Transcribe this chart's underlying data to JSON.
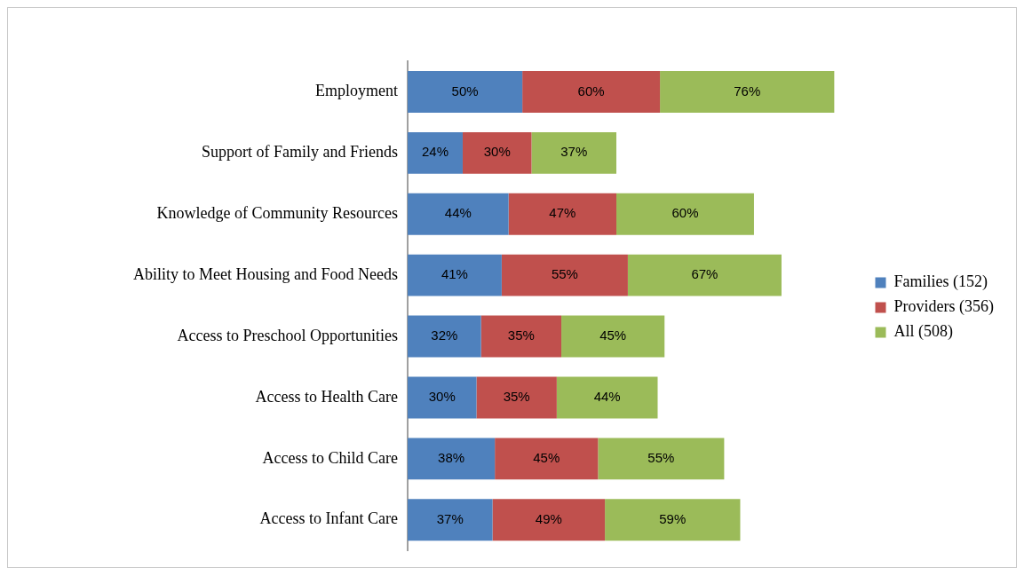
{
  "chart_data": {
    "type": "bar",
    "orientation": "horizontal",
    "stacked": true,
    "legend": "right",
    "categories": [
      "Employment",
      "Support of Family and Friends",
      "Knowledge of Community Resources",
      "Ability to Meet Housing and Food Needs",
      "Access to Preschool Opportunities",
      "Access to Health Care",
      "Access to Child Care",
      "Access to Infant Care"
    ],
    "series": [
      {
        "name": "Families (152)",
        "color": "#4f81bd",
        "values": [
          50,
          24,
          44,
          41,
          32,
          30,
          38,
          37
        ],
        "value_labels": [
          "50%",
          "24%",
          "44%",
          "41%",
          "32%",
          "30%",
          "38%",
          "37%"
        ]
      },
      {
        "name": "Providers (356)",
        "color": "#c0504d",
        "values": [
          60,
          30,
          47,
          55,
          35,
          35,
          45,
          49
        ],
        "value_labels": [
          "60%",
          "30%",
          "47%",
          "55%",
          "35%",
          "35%",
          "45%",
          "49%"
        ]
      },
      {
        "name": "All (508)",
        "color": "#9bbb59",
        "values": [
          76,
          37,
          60,
          67,
          45,
          44,
          55,
          59
        ],
        "value_labels": [
          "76%",
          "37%",
          "60%",
          "67%",
          "45%",
          "44%",
          "55%",
          "59%"
        ]
      }
    ]
  }
}
